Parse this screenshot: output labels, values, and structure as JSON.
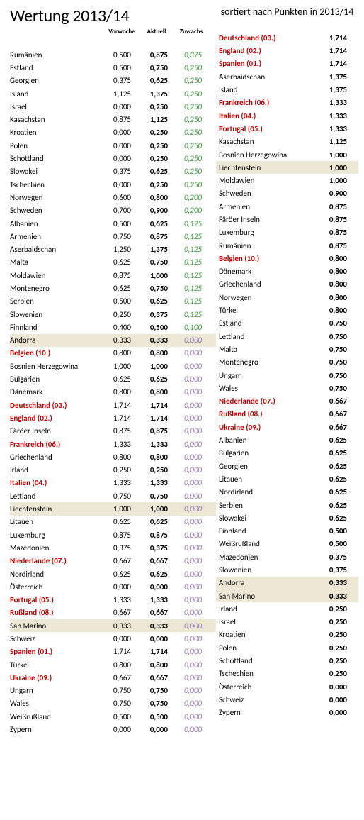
{
  "titleLeft": "Wertung 2013/14",
  "titleRight": "sortiert nach Punkten in 2013/14",
  "headers": {
    "vorwoche": "Vorwoche",
    "aktuell": "Aktuell",
    "zuwachs": "Zuwachs"
  },
  "colors": {
    "red": "#c00000",
    "green": "#3a9a3a",
    "violet": "#9a7bb5",
    "highlight": "#ece8d5"
  },
  "left": [
    {
      "name": "Rumänien",
      "vor": "0,500",
      "akt": "0,875",
      "zuw": "0,375",
      "zc": "green"
    },
    {
      "name": "Estland",
      "vor": "0,500",
      "akt": "0,750",
      "zuw": "0,250",
      "zc": "green"
    },
    {
      "name": "Georgien",
      "vor": "0,375",
      "akt": "0,625",
      "zuw": "0,250",
      "zc": "green"
    },
    {
      "name": "Island",
      "vor": "1,125",
      "akt": "1,375",
      "zuw": "0,250",
      "zc": "green"
    },
    {
      "name": "Israel",
      "vor": "0,000",
      "akt": "0,250",
      "zuw": "0,250",
      "zc": "green"
    },
    {
      "name": "Kasachstan",
      "vor": "0,875",
      "akt": "1,125",
      "zuw": "0,250",
      "zc": "green"
    },
    {
      "name": "Kroatien",
      "vor": "0,000",
      "akt": "0,250",
      "zuw": "0,250",
      "zc": "green"
    },
    {
      "name": "Polen",
      "vor": "0,000",
      "akt": "0,250",
      "zuw": "0,250",
      "zc": "green"
    },
    {
      "name": "Schottland",
      "vor": "0,000",
      "akt": "0,250",
      "zuw": "0,250",
      "zc": "green"
    },
    {
      "name": "Slowakei",
      "vor": "0,375",
      "akt": "0,625",
      "zuw": "0,250",
      "zc": "green"
    },
    {
      "name": "Tschechien",
      "vor": "0,000",
      "akt": "0,250",
      "zuw": "0,250",
      "zc": "green"
    },
    {
      "name": "Norwegen",
      "vor": "0,600",
      "akt": "0,800",
      "zuw": "0,200",
      "zc": "green"
    },
    {
      "name": "Schweden",
      "vor": "0,700",
      "akt": "0,900",
      "zuw": "0,200",
      "zc": "green"
    },
    {
      "name": "Albanien",
      "vor": "0,500",
      "akt": "0,625",
      "zuw": "0,125",
      "zc": "green"
    },
    {
      "name": "Armenien",
      "vor": "0,750",
      "akt": "0,875",
      "zuw": "0,125",
      "zc": "green"
    },
    {
      "name": "Aserbaidschan",
      "vor": "1,250",
      "akt": "1,375",
      "zuw": "0,125",
      "zc": "green"
    },
    {
      "name": "Malta",
      "vor": "0,625",
      "akt": "0,750",
      "zuw": "0,125",
      "zc": "green"
    },
    {
      "name": "Moldawien",
      "vor": "0,875",
      "akt": "1,000",
      "zuw": "0,125",
      "zc": "green"
    },
    {
      "name": "Montenegro",
      "vor": "0,625",
      "akt": "0,750",
      "zuw": "0,125",
      "zc": "green"
    },
    {
      "name": "Serbien",
      "vor": "0,500",
      "akt": "0,625",
      "zuw": "0,125",
      "zc": "green"
    },
    {
      "name": "Slowenien",
      "vor": "0,250",
      "akt": "0,375",
      "zuw": "0,125",
      "zc": "green"
    },
    {
      "name": "Finnland",
      "vor": "0,400",
      "akt": "0,500",
      "zuw": "0,100",
      "zc": "green"
    },
    {
      "name": "Andorra",
      "vor": "0,333",
      "akt": "0,333",
      "zuw": "0,000",
      "zc": "violet",
      "hl": true
    },
    {
      "name": "Belgien (10.)",
      "vor": "0,800",
      "akt": "0,800",
      "zuw": "0,000",
      "zc": "violet",
      "red": true
    },
    {
      "name": "Bosnien Herzegowina",
      "vor": "1,000",
      "akt": "1,000",
      "zuw": "0,000",
      "zc": "violet"
    },
    {
      "name": "Bulgarien",
      "vor": "0,625",
      "akt": "0,625",
      "zuw": "0,000",
      "zc": "violet"
    },
    {
      "name": "Dänemark",
      "vor": "0,800",
      "akt": "0,800",
      "zuw": "0,000",
      "zc": "violet"
    },
    {
      "name": "Deutschland (03.)",
      "vor": "1,714",
      "akt": "1,714",
      "zuw": "0,000",
      "zc": "violet",
      "red": true
    },
    {
      "name": "England (02.)",
      "vor": "1,714",
      "akt": "1,714",
      "zuw": "0,000",
      "zc": "violet",
      "red": true
    },
    {
      "name": "Färöer Inseln",
      "vor": "0,875",
      "akt": "0,875",
      "zuw": "0,000",
      "zc": "violet"
    },
    {
      "name": "Frankreich (06.)",
      "vor": "1,333",
      "akt": "1,333",
      "zuw": "0,000",
      "zc": "violet",
      "red": true
    },
    {
      "name": "Griechenland",
      "vor": "0,800",
      "akt": "0,800",
      "zuw": "0,000",
      "zc": "violet"
    },
    {
      "name": "Irland",
      "vor": "0,250",
      "akt": "0,250",
      "zuw": "0,000",
      "zc": "violet"
    },
    {
      "name": "Italien (04.)",
      "vor": "1,333",
      "akt": "1,333",
      "zuw": "0,000",
      "zc": "violet",
      "red": true
    },
    {
      "name": "Lettland",
      "vor": "0,750",
      "akt": "0,750",
      "zuw": "0,000",
      "zc": "violet"
    },
    {
      "name": "Liechtenstein",
      "vor": "1,000",
      "akt": "1,000",
      "zuw": "0,000",
      "zc": "violet",
      "hl": true
    },
    {
      "name": "Litauen",
      "vor": "0,625",
      "akt": "0,625",
      "zuw": "0,000",
      "zc": "violet"
    },
    {
      "name": "Luxemburg",
      "vor": "0,875",
      "akt": "0,875",
      "zuw": "0,000",
      "zc": "violet"
    },
    {
      "name": "Mazedonien",
      "vor": "0,375",
      "akt": "0,375",
      "zuw": "0,000",
      "zc": "violet"
    },
    {
      "name": "Niederlande (07.)",
      "vor": "0,667",
      "akt": "0,667",
      "zuw": "0,000",
      "zc": "violet",
      "red": true
    },
    {
      "name": "Nordirland",
      "vor": "0,625",
      "akt": "0,625",
      "zuw": "0,000",
      "zc": "violet"
    },
    {
      "name": "Österreich",
      "vor": "0,000",
      "akt": "0,000",
      "zuw": "0,000",
      "zc": "violet"
    },
    {
      "name": "Portugal (05.)",
      "vor": "1,333",
      "akt": "1,333",
      "zuw": "0,000",
      "zc": "violet",
      "red": true
    },
    {
      "name": "Rußland (08.)",
      "vor": "0,667",
      "akt": "0,667",
      "zuw": "0,000",
      "zc": "violet",
      "red": true
    },
    {
      "name": "San Marino",
      "vor": "0,333",
      "akt": "0,333",
      "zuw": "0,000",
      "zc": "violet",
      "hl": true
    },
    {
      "name": "Schweiz",
      "vor": "0,000",
      "akt": "0,000",
      "zuw": "0,000",
      "zc": "violet"
    },
    {
      "name": "Spanien (01.)",
      "vor": "1,714",
      "akt": "1,714",
      "zuw": "0,000",
      "zc": "violet",
      "red": true
    },
    {
      "name": "Türkei",
      "vor": "0,800",
      "akt": "0,800",
      "zuw": "0,000",
      "zc": "violet"
    },
    {
      "name": "Ukraine (09.)",
      "vor": "0,667",
      "akt": "0,667",
      "zuw": "0,000",
      "zc": "violet",
      "red": true
    },
    {
      "name": "Ungarn",
      "vor": "0,750",
      "akt": "0,750",
      "zuw": "0,000",
      "zc": "violet"
    },
    {
      "name": "Wales",
      "vor": "0,750",
      "akt": "0,750",
      "zuw": "0,000",
      "zc": "violet"
    },
    {
      "name": "Weißrußland",
      "vor": "0,500",
      "akt": "0,500",
      "zuw": "0,000",
      "zc": "violet"
    },
    {
      "name": "Zypern",
      "vor": "0,000",
      "akt": "0,000",
      "zuw": "0,000",
      "zc": "violet"
    }
  ],
  "right": [
    {
      "name": "Deutschland (03.)",
      "val": "1,714",
      "red": true
    },
    {
      "name": "England (02.)",
      "val": "1,714",
      "red": true
    },
    {
      "name": "Spanien (01.)",
      "val": "1,714",
      "red": true
    },
    {
      "name": "Aserbaidschan",
      "val": "1,375"
    },
    {
      "name": "Island",
      "val": "1,375"
    },
    {
      "name": "Frankreich (06.)",
      "val": "1,333",
      "red": true
    },
    {
      "name": "Italien (04.)",
      "val": "1,333",
      "red": true
    },
    {
      "name": "Portugal (05.)",
      "val": "1,333",
      "red": true
    },
    {
      "name": "Kasachstan",
      "val": "1,125"
    },
    {
      "name": "Bosnien Herzegowina",
      "val": "1,000"
    },
    {
      "name": "Liechtenstein",
      "val": "1,000",
      "hl": true
    },
    {
      "name": "Moldawien",
      "val": "1,000"
    },
    {
      "name": "Schweden",
      "val": "0,900"
    },
    {
      "name": "Armenien",
      "val": "0,875"
    },
    {
      "name": "Färöer Inseln",
      "val": "0,875"
    },
    {
      "name": "Luxemburg",
      "val": "0,875"
    },
    {
      "name": "Rumänien",
      "val": "0,875"
    },
    {
      "name": "Belgien (10.)",
      "val": "0,800",
      "red": true
    },
    {
      "name": "Dänemark",
      "val": "0,800"
    },
    {
      "name": "Griechenland",
      "val": "0,800"
    },
    {
      "name": "Norwegen",
      "val": "0,800"
    },
    {
      "name": "Türkei",
      "val": "0,800"
    },
    {
      "name": "Estland",
      "val": "0,750"
    },
    {
      "name": "Lettland",
      "val": "0,750"
    },
    {
      "name": "Malta",
      "val": "0,750"
    },
    {
      "name": "Montenegro",
      "val": "0,750"
    },
    {
      "name": "Ungarn",
      "val": "0,750"
    },
    {
      "name": "Wales",
      "val": "0,750"
    },
    {
      "name": "Niederlande (07.)",
      "val": "0,667",
      "red": true
    },
    {
      "name": "Rußland (08.)",
      "val": "0,667",
      "red": true
    },
    {
      "name": "Ukraine (09.)",
      "val": "0,667",
      "red": true
    },
    {
      "name": "Albanien",
      "val": "0,625"
    },
    {
      "name": "Bulgarien",
      "val": "0,625"
    },
    {
      "name": "Georgien",
      "val": "0,625"
    },
    {
      "name": "Litauen",
      "val": "0,625"
    },
    {
      "name": "Nordirland",
      "val": "0,625"
    },
    {
      "name": "Serbien",
      "val": "0,625"
    },
    {
      "name": "Slowakei",
      "val": "0,625"
    },
    {
      "name": "Finnland",
      "val": "0,500"
    },
    {
      "name": "Weißrußland",
      "val": "0,500"
    },
    {
      "name": "Mazedonien",
      "val": "0,375"
    },
    {
      "name": "Slowenien",
      "val": "0,375"
    },
    {
      "name": "Andorra",
      "val": "0,333",
      "hl": true
    },
    {
      "name": "San Marino",
      "val": "0,333",
      "hl": true
    },
    {
      "name": "Irland",
      "val": "0,250"
    },
    {
      "name": "Israel",
      "val": "0,250"
    },
    {
      "name": "Kroatien",
      "val": "0,250"
    },
    {
      "name": "Polen",
      "val": "0,250"
    },
    {
      "name": "Schottland",
      "val": "0,250"
    },
    {
      "name": "Tschechien",
      "val": "0,250"
    },
    {
      "name": "Österreich",
      "val": "0,000"
    },
    {
      "name": "Schweiz",
      "val": "0,000"
    },
    {
      "name": "Zypern",
      "val": "0,000"
    }
  ]
}
